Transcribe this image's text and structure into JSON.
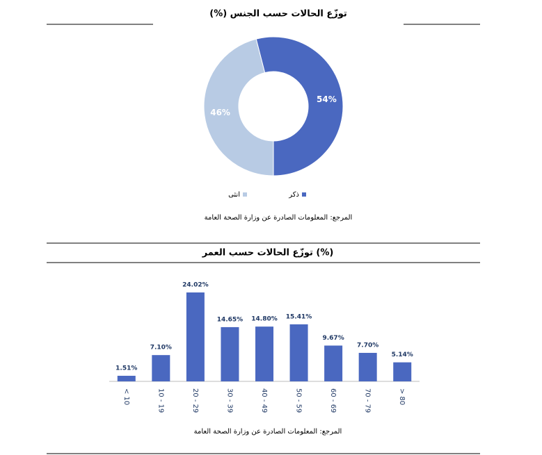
{
  "chart_data": [
    {
      "type": "donut",
      "title": "توزّع الحالات حسب الجنس (%)",
      "categories": [
        "ذكر",
        "انثى"
      ],
      "values": [
        54,
        46
      ],
      "value_labels": [
        "54%",
        "46%"
      ],
      "colors": [
        "#4a68c0",
        "#b8cbe4"
      ],
      "legend": "bottom",
      "source": "المرجع: المعلومات الصادرة عن وزارة الصحة العامة"
    },
    {
      "type": "bar",
      "title": "توزّع الحالات حسب العمر (%)",
      "categories": [
        "< 10",
        "10 - 19",
        "20 - 29",
        "30 - 39",
        "40 - 49",
        "50 - 59",
        "60 - 69",
        "70 - 79",
        "> 80"
      ],
      "values": [
        1.51,
        7.1,
        24.02,
        14.65,
        14.8,
        15.41,
        9.67,
        7.7,
        5.14
      ],
      "value_labels": [
        "1.51%",
        "7.10%",
        "24.02%",
        "14.65%",
        "14.80%",
        "15.41%",
        "9.67%",
        "7.70%",
        "5.14%"
      ],
      "color": "#4a68c0",
      "source": "المرجع: المعلومات الصادرة عن وزارة الصحة العامة"
    }
  ]
}
